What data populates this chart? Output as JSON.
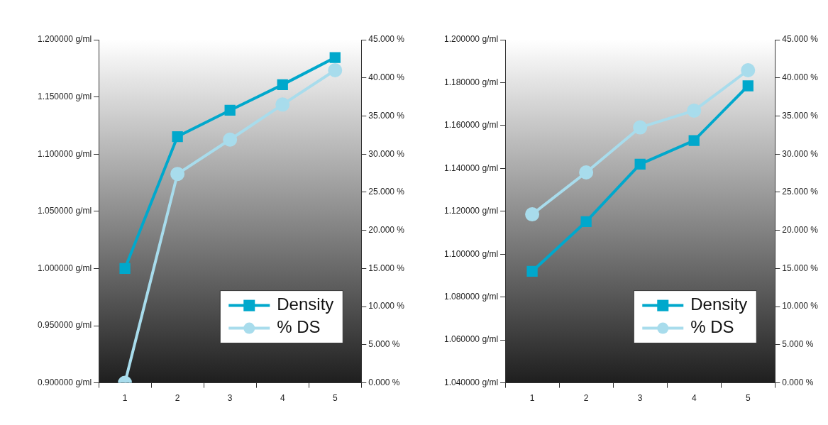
{
  "chart_data": [
    {
      "type": "line",
      "categories": [
        "1",
        "2",
        "3",
        "4",
        "5"
      ],
      "series": [
        {
          "name": "Density",
          "color": "#00a8cc",
          "marker": "square",
          "values": [
            1.0,
            1.1153,
            1.1383,
            1.1607,
            1.1844
          ]
        },
        {
          "name": "% DS",
          "color": "#a8dcec",
          "marker": "circle",
          "axis": "y2",
          "values": [
            0,
            27.4,
            31.9,
            36.5,
            41.0
          ]
        }
      ],
      "ylim": [
        0.9,
        1.2
      ],
      "yticks": [
        {
          "value": 0.9,
          "label": "0.900000 g/ml"
        },
        {
          "value": 0.95,
          "label": "0.950000 g/ml"
        },
        {
          "value": 1.0,
          "label": "1.000000 g/ml"
        },
        {
          "value": 1.05,
          "label": "1.050000 g/ml"
        },
        {
          "value": 1.1,
          "label": "1.100000 g/ml"
        },
        {
          "value": 1.15,
          "label": "1.150000 g/ml"
        },
        {
          "value": 1.2,
          "label": "1.200000 g/ml"
        }
      ],
      "y2lim": [
        0,
        45
      ],
      "y2ticks": [
        {
          "value": 0,
          "label": "0.000 %"
        },
        {
          "value": 5,
          "label": "5.000 %"
        },
        {
          "value": 10,
          "label": "10.000 %"
        },
        {
          "value": 15,
          "label": "15.000 %"
        },
        {
          "value": 20,
          "label": "20.000 %"
        },
        {
          "value": 25,
          "label": "25.000 %"
        },
        {
          "value": 30,
          "label": "30.000 %"
        },
        {
          "value": 35,
          "label": "35.000 %"
        },
        {
          "value": 40,
          "label": "40.000 %"
        },
        {
          "value": 45,
          "label": "45.000 %"
        }
      ],
      "grid": false,
      "legend": "bottom right"
    },
    {
      "type": "line",
      "categories": [
        "1",
        "2",
        "3",
        "4",
        "5"
      ],
      "series": [
        {
          "name": "Density",
          "color": "#00a8cc",
          "marker": "square",
          "values": [
            1.092,
            1.1152,
            1.142,
            1.153,
            1.1785
          ]
        },
        {
          "name": "% DS",
          "color": "#a8dcec",
          "marker": "circle",
          "axis": "y2",
          "values": [
            22.1,
            27.6,
            33.5,
            35.7,
            41.0
          ]
        }
      ],
      "ylim": [
        1.04,
        1.2
      ],
      "yticks": [
        {
          "value": 1.04,
          "label": "1.040000 g/ml"
        },
        {
          "value": 1.06,
          "label": "1.060000 g/ml"
        },
        {
          "value": 1.08,
          "label": "1.080000 g/ml"
        },
        {
          "value": 1.1,
          "label": "1.100000 g/ml"
        },
        {
          "value": 1.12,
          "label": "1.120000 g/ml"
        },
        {
          "value": 1.14,
          "label": "1.140000 g/ml"
        },
        {
          "value": 1.16,
          "label": "1.160000 g/ml"
        },
        {
          "value": 1.18,
          "label": "1.180000 g/ml"
        },
        {
          "value": 1.2,
          "label": "1.200000 g/ml"
        }
      ],
      "y2lim": [
        0,
        45
      ],
      "y2ticks": [
        {
          "value": 0,
          "label": "0.000 %"
        },
        {
          "value": 5,
          "label": "5.000 %"
        },
        {
          "value": 10,
          "label": "10.000 %"
        },
        {
          "value": 15,
          "label": "15.000 %"
        },
        {
          "value": 20,
          "label": "20.000 %"
        },
        {
          "value": 25,
          "label": "25.000 %"
        },
        {
          "value": 30,
          "label": "30.000 %"
        },
        {
          "value": 35,
          "label": "35.000 %"
        },
        {
          "value": 40,
          "label": "40.000 %"
        },
        {
          "value": 45,
          "label": "45.000 %"
        }
      ],
      "grid": false,
      "legend": "bottom right"
    }
  ]
}
